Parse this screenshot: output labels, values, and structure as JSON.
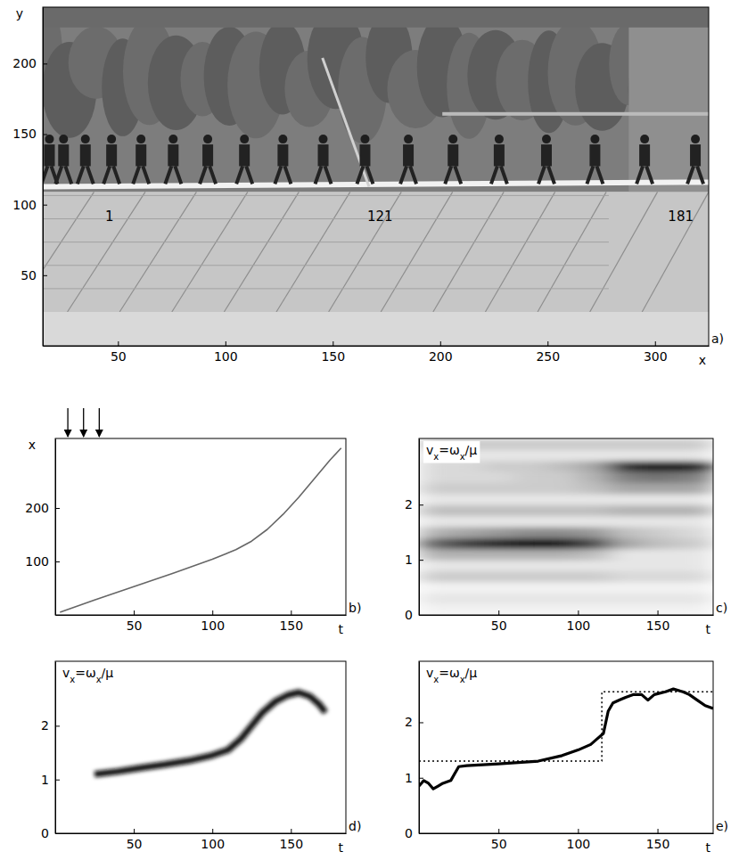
{
  "chart_data": [
    {
      "type": "image",
      "panel_label": "a)",
      "x_label": "x",
      "y_label": "y",
      "xlim": [
        15,
        325
      ],
      "ylim": [
        0,
        240
      ],
      "xticks": [
        50,
        100,
        150,
        200,
        250,
        300
      ],
      "yticks": [
        50,
        100,
        150,
        200
      ],
      "annotations": [
        {
          "text": "1",
          "x": 46,
          "y": 96
        },
        {
          "text": "121",
          "x": 172,
          "y": 96
        },
        {
          "text": "181",
          "x": 312,
          "y": 96
        }
      ]
    },
    {
      "type": "line",
      "panel_label": "b)",
      "x_label": "t",
      "y_label": "x",
      "xlim": [
        0,
        185
      ],
      "ylim": [
        0,
        330
      ],
      "xticks": [
        50,
        100,
        150
      ],
      "yticks": [
        100,
        200
      ],
      "arrows": [
        8,
        18,
        28
      ],
      "x": [
        3,
        25,
        50,
        75,
        100,
        115,
        125,
        135,
        145,
        155,
        165,
        175,
        182
      ],
      "series": [
        {
          "values": [
            5,
            28,
            53,
            78,
            104,
            122,
            138,
            160,
            188,
            220,
            255,
            290,
            312
          ],
          "color": "#666666",
          "line_style": "solid"
        }
      ]
    },
    {
      "type": "heatmap",
      "panel_label": "c)",
      "x_label": "t",
      "y_label": "vx=ωx/μ",
      "xlim": [
        0,
        185
      ],
      "ylim": [
        0,
        3.2
      ],
      "xticks": [
        50,
        100,
        150
      ],
      "yticks": [
        0,
        1,
        2
      ],
      "color": "#000000",
      "t_edges": [
        0,
        20,
        40,
        60,
        80,
        100,
        120,
        140,
        160,
        185
      ],
      "v_edges": [
        0,
        0.2,
        0.4,
        0.6,
        0.8,
        1.0,
        1.2,
        1.4,
        1.6,
        1.8,
        2.0,
        2.2,
        2.4,
        2.6,
        2.8,
        3.0,
        3.2
      ],
      "cells": [
        [
          0.05,
          0.05,
          0.05,
          0.05,
          0.05,
          0.05,
          0.05,
          0.05,
          0.05
        ],
        [
          0.1,
          0.1,
          0.1,
          0.1,
          0.1,
          0.1,
          0.1,
          0.1,
          0.1
        ],
        [
          0.05,
          0.05,
          0.05,
          0.05,
          0.05,
          0.05,
          0.05,
          0.05,
          0.05
        ],
        [
          0.2,
          0.2,
          0.2,
          0.2,
          0.2,
          0.2,
          0.15,
          0.15,
          0.15
        ],
        [
          0.1,
          0.1,
          0.1,
          0.1,
          0.1,
          0.1,
          0.1,
          0.1,
          0.1
        ],
        [
          0.3,
          0.3,
          0.3,
          0.3,
          0.3,
          0.25,
          0.1,
          0.1,
          0.1
        ],
        [
          0.6,
          0.75,
          0.85,
          0.95,
          0.9,
          0.7,
          0.35,
          0.25,
          0.2
        ],
        [
          0.3,
          0.35,
          0.4,
          0.45,
          0.45,
          0.4,
          0.25,
          0.2,
          0.15
        ],
        [
          0.1,
          0.1,
          0.1,
          0.1,
          0.1,
          0.1,
          0.1,
          0.1,
          0.1
        ],
        [
          0.25,
          0.25,
          0.25,
          0.25,
          0.25,
          0.25,
          0.3,
          0.3,
          0.3
        ],
        [
          0.1,
          0.1,
          0.1,
          0.1,
          0.1,
          0.1,
          0.1,
          0.1,
          0.1
        ],
        [
          0.2,
          0.2,
          0.2,
          0.2,
          0.2,
          0.25,
          0.35,
          0.35,
          0.35
        ],
        [
          0.15,
          0.15,
          0.15,
          0.2,
          0.2,
          0.3,
          0.5,
          0.55,
          0.5
        ],
        [
          0.15,
          0.15,
          0.2,
          0.2,
          0.25,
          0.35,
          0.8,
          0.9,
          0.85
        ],
        [
          0.1,
          0.1,
          0.1,
          0.1,
          0.1,
          0.1,
          0.1,
          0.1,
          0.1
        ],
        [
          0.2,
          0.2,
          0.2,
          0.2,
          0.2,
          0.2,
          0.2,
          0.2,
          0.2
        ]
      ]
    },
    {
      "type": "line",
      "panel_label": "d)",
      "x_label": "t",
      "y_label": "vx=ωx/μ",
      "xlim": [
        0,
        185
      ],
      "ylim": [
        0,
        3.2
      ],
      "xticks": [
        50,
        100,
        150
      ],
      "yticks": [
        0,
        1,
        2
      ],
      "x": [
        25,
        40,
        55,
        70,
        85,
        100,
        110,
        118,
        125,
        132,
        140,
        148,
        155,
        162,
        168,
        172
      ],
      "series": [
        {
          "values": [
            1.1,
            1.15,
            1.22,
            1.28,
            1.35,
            1.45,
            1.55,
            1.75,
            2.0,
            2.25,
            2.45,
            2.57,
            2.62,
            2.55,
            2.4,
            2.25
          ],
          "color": "#111111",
          "line_style": "solid"
        }
      ]
    },
    {
      "type": "line",
      "panel_label": "e)",
      "x_label": "t",
      "y_label": "vx=ωx/μ",
      "xlim": [
        0,
        185
      ],
      "ylim": [
        0,
        3.1
      ],
      "xticks": [
        50,
        100,
        150
      ],
      "yticks": [
        0,
        1,
        2
      ],
      "series": [
        {
          "x": [
            0,
            3,
            6,
            9,
            12,
            15,
            20,
            25,
            30,
            50,
            75,
            90,
            100,
            108,
            112,
            116,
            119,
            122,
            126,
            130,
            135,
            140,
            144,
            148,
            155,
            160,
            166,
            170,
            175,
            180,
            185
          ],
          "values": [
            0.85,
            0.95,
            0.9,
            0.8,
            0.85,
            0.9,
            0.95,
            1.2,
            1.22,
            1.25,
            1.3,
            1.4,
            1.5,
            1.6,
            1.7,
            1.8,
            2.2,
            2.35,
            2.4,
            2.45,
            2.5,
            2.5,
            2.4,
            2.5,
            2.55,
            2.6,
            2.55,
            2.5,
            2.4,
            2.3,
            2.25
          ],
          "color": "#000000",
          "line_style": "solid"
        },
        {
          "x": [
            0,
            115,
            115,
            185
          ],
          "values": [
            1.3,
            1.3,
            2.55,
            2.55
          ],
          "color": "#000000",
          "line_style": "dotted"
        }
      ]
    }
  ]
}
